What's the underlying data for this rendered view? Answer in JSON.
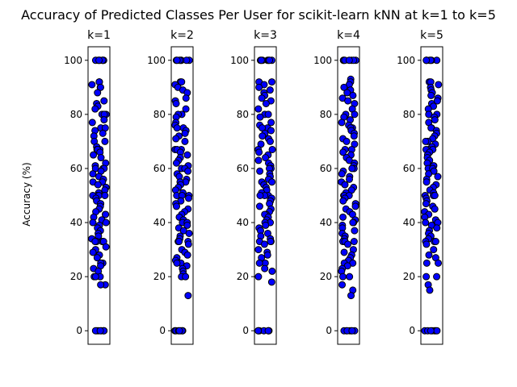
{
  "chart_data": {
    "type": "scatter",
    "title": "Accuracy of Predicted Classes Per User for scikit-learn kNN at k=1 to k=5",
    "ylabel": "Accuracy (%)",
    "ylim": [
      -5,
      105
    ],
    "yticks": [
      "0",
      "20",
      "40",
      "60",
      "80",
      "100"
    ],
    "grid": false,
    "point_color": "#0000ff",
    "edge_color": "#000000",
    "panels": [
      {
        "name": "k=1",
        "values": [
          100,
          100,
          100,
          100,
          100,
          100,
          100,
          92,
          92,
          91,
          90,
          90,
          88,
          85,
          84,
          83,
          82,
          80,
          80,
          80,
          78,
          77,
          75,
          75,
          74,
          73,
          72,
          70,
          70,
          68,
          67,
          67,
          67,
          66,
          65,
          64,
          62,
          61,
          60,
          60,
          60,
          59,
          58,
          57,
          56,
          55,
          55,
          54,
          53,
          52,
          51,
          50,
          50,
          50,
          50,
          49,
          48,
          47,
          46,
          45,
          44,
          43,
          43,
          42,
          41,
          40,
          40,
          39,
          38,
          37,
          36,
          35,
          34,
          33,
          33,
          33,
          33,
          31,
          30,
          29,
          28,
          27,
          25,
          25,
          25,
          24,
          23,
          22,
          20,
          20,
          20,
          17,
          17,
          0,
          0,
          0,
          0,
          0,
          0,
          0
        ]
      },
      {
        "name": "k=2",
        "values": [
          100,
          100,
          100,
          100,
          100,
          100,
          100,
          92,
          92,
          91,
          90,
          89,
          88,
          86,
          85,
          84,
          82,
          80,
          80,
          79,
          77,
          76,
          75,
          75,
          74,
          73,
          72,
          71,
          70,
          67,
          67,
          67,
          66,
          65,
          64,
          63,
          62,
          61,
          60,
          60,
          59,
          58,
          57,
          56,
          55,
          55,
          54,
          53,
          52,
          51,
          50,
          50,
          50,
          49,
          48,
          47,
          46,
          45,
          44,
          43,
          42,
          41,
          40,
          40,
          39,
          38,
          37,
          36,
          35,
          34,
          33,
          33,
          33,
          32,
          30,
          29,
          28,
          27,
          26,
          25,
          25,
          24,
          23,
          22,
          21,
          20,
          20,
          13,
          0,
          0,
          0,
          0,
          0,
          0,
          0
        ]
      },
      {
        "name": "k=3",
        "values": [
          100,
          100,
          100,
          100,
          100,
          100,
          100,
          92,
          92,
          91,
          90,
          89,
          88,
          87,
          86,
          85,
          84,
          82,
          80,
          80,
          79,
          77,
          76,
          75,
          75,
          74,
          73,
          72,
          71,
          70,
          69,
          67,
          67,
          66,
          65,
          64,
          63,
          62,
          61,
          60,
          60,
          59,
          58,
          57,
          56,
          55,
          55,
          54,
          53,
          52,
          51,
          50,
          50,
          50,
          49,
          48,
          47,
          46,
          45,
          44,
          43,
          43,
          42,
          41,
          40,
          40,
          39,
          38,
          37,
          36,
          35,
          34,
          33,
          33,
          33,
          32,
          30,
          29,
          28,
          27,
          25,
          25,
          23,
          22,
          20,
          18,
          0,
          0,
          0,
          0,
          0,
          0,
          0
        ]
      },
      {
        "name": "k=4",
        "values": [
          100,
          100,
          100,
          100,
          100,
          100,
          100,
          93,
          92,
          91,
          90,
          89,
          88,
          87,
          86,
          85,
          84,
          82,
          80,
          80,
          79,
          78,
          77,
          76,
          75,
          75,
          74,
          73,
          72,
          71,
          70,
          69,
          67,
          67,
          66,
          65,
          64,
          63,
          62,
          61,
          60,
          60,
          59,
          58,
          57,
          56,
          55,
          54,
          53,
          52,
          51,
          50,
          50,
          50,
          49,
          48,
          47,
          46,
          45,
          44,
          43,
          42,
          41,
          40,
          40,
          39,
          38,
          37,
          36,
          35,
          34,
          33,
          33,
          33,
          32,
          30,
          29,
          28,
          27,
          26,
          25,
          25,
          24,
          23,
          22,
          20,
          20,
          17,
          15,
          13,
          0,
          0,
          0,
          0,
          0,
          0,
          0
        ]
      },
      {
        "name": "k=5",
        "values": [
          100,
          100,
          100,
          100,
          100,
          100,
          100,
          92,
          92,
          91,
          90,
          89,
          88,
          87,
          86,
          85,
          84,
          83,
          82,
          80,
          80,
          80,
          79,
          78,
          77,
          75,
          75,
          74,
          73,
          72,
          71,
          70,
          70,
          69,
          68,
          67,
          67,
          67,
          66,
          65,
          64,
          63,
          62,
          61,
          60,
          60,
          59,
          58,
          57,
          56,
          55,
          54,
          53,
          52,
          51,
          50,
          50,
          50,
          49,
          48,
          47,
          46,
          45,
          44,
          43,
          42,
          41,
          40,
          40,
          39,
          38,
          37,
          36,
          35,
          34,
          33,
          33,
          33,
          32,
          30,
          28,
          27,
          25,
          25,
          20,
          20,
          17,
          15,
          0,
          0,
          0,
          0,
          0,
          0,
          0
        ]
      }
    ]
  }
}
